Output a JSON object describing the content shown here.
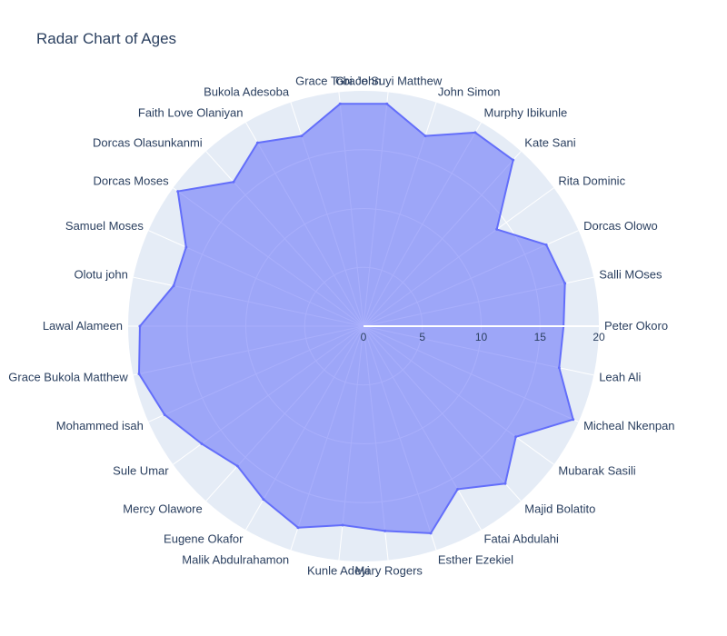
{
  "chart_data": {
    "type": "radar",
    "title": "Radar Chart of Ages",
    "theta": [
      "Peter Okoro",
      "Salli MOses",
      "Dorcas Olowo",
      "Rita Dominic",
      "Kate Sani",
      "Murphy Ibikunle",
      "John Simon",
      "Grace Suyi Matthew",
      "Grace Tobi John",
      "Bukola Adesoba",
      "Faith Love Olaniyan",
      "Dorcas Olasunkanmi",
      "Dorcas Moses",
      "Samuel Moses",
      "Olotu john",
      "Lawal Alameen",
      "Grace Bukola Matthew",
      "Mohammed isah",
      "Sule Umar",
      "Mercy Olawore",
      "Eugene Okafor",
      "Malik Abdulrahamon",
      "Kunle Adeyi",
      "Mary Rogers",
      "Esther Ezekiel",
      "Fatai Abdulahi",
      "Majid Bolatito",
      "Mubarak Sasili",
      "Micheal Nkenpan",
      "Leah Ali"
    ],
    "r": [
      17,
      17.5,
      17,
      14,
      19,
      19,
      17,
      19,
      19,
      17,
      18,
      16.5,
      19.5,
      16.5,
      16.5,
      19,
      19.5,
      18.5,
      17,
      16,
      17,
      18,
      17,
      17.5,
      18.5,
      16,
      18,
      16,
      19.5,
      17
    ],
    "radial_range": [
      0,
      20
    ],
    "radial_ticks": [
      "0",
      "5",
      "10",
      "15",
      "20"
    ],
    "grid": true,
    "colors": {
      "fill": "rgba(99,110,250,0.55)",
      "line": "#636efa",
      "polar_bg": "#e5ecf6",
      "grid": "#ffffff",
      "text": "#2a3f5f"
    }
  }
}
